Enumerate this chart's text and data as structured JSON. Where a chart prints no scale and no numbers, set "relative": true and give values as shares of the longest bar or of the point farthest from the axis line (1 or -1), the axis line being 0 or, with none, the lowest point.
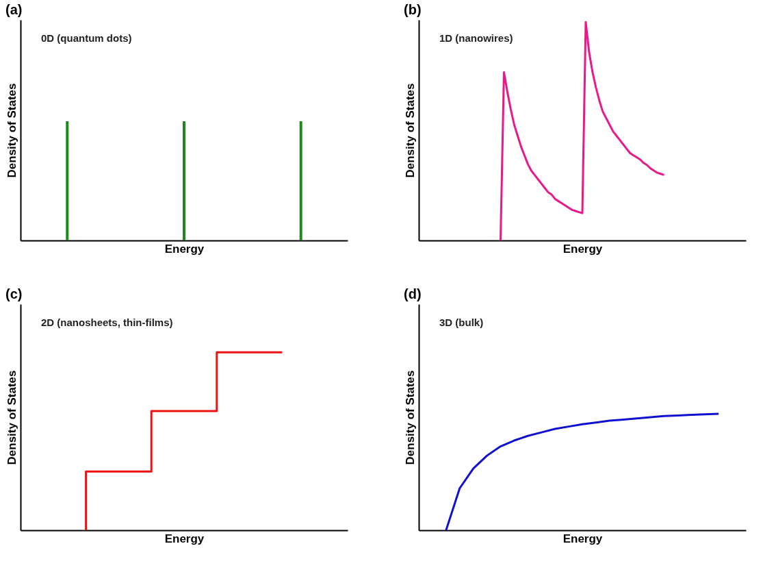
{
  "chart_data": [
    {
      "type": "bar",
      "title": "(a)",
      "annotations": [
        "0D (quantum dots)"
      ],
      "xlabel": "Energy",
      "ylabel": "Density of States",
      "categories": [
        null,
        null,
        null
      ],
      "values": [
        1,
        1,
        1
      ],
      "color": "#1a8a1a",
      "relative": true,
      "tick_labels": false
    },
    {
      "type": "line",
      "title": "(b)",
      "annotations": [
        "1D (nanowires)"
      ],
      "xlabel": "Energy",
      "ylabel": "Density of States",
      "categories": [
        null,
        null,
        null,
        null,
        null,
        null,
        null,
        null,
        null,
        null,
        null,
        null,
        null,
        null,
        null,
        null,
        null,
        null,
        null,
        null,
        null,
        null,
        null,
        null,
        null,
        null,
        null,
        null,
        null,
        null,
        null,
        null,
        null,
        null,
        null,
        null,
        null,
        null,
        null,
        null,
        null,
        null,
        null,
        null,
        null,
        null,
        null,
        null,
        null
      ],
      "values": [
        0,
        0.77,
        0.68,
        0.6,
        0.53,
        0.48,
        0.43,
        0.39,
        0.35,
        0.32,
        0.3,
        0.28,
        0.26,
        0.24,
        0.22,
        0.21,
        0.19,
        0.18,
        0.17,
        0.16,
        0.15,
        0.14,
        0.135,
        0.13,
        0.125,
        1,
        0.86,
        0.77,
        0.7,
        0.64,
        0.59,
        0.56,
        0.53,
        0.5,
        0.48,
        0.46,
        0.44,
        0.42,
        0.4,
        0.39,
        0.38,
        0.37,
        0.355,
        0.345,
        0.33,
        0.32,
        0.31,
        0.305,
        0.3
      ],
      "color": "#e8198b",
      "relative": true,
      "tick_labels": false
    },
    {
      "type": "step",
      "title": "(c)",
      "annotations": [
        "2D (nanosheets, thin-films)"
      ],
      "xlabel": "Energy",
      "ylabel": "Density of States",
      "categories": [
        null,
        null,
        null,
        null
      ],
      "values": [
        0,
        0.33,
        0.67,
        1
      ],
      "color": "#ee1111",
      "relative": true,
      "tick_labels": false
    },
    {
      "type": "line",
      "title": "(d)",
      "annotations": [
        "3D (bulk)"
      ],
      "xlabel": "Energy",
      "ylabel": "Density of States",
      "categories": [
        null,
        null,
        null,
        null,
        null,
        null,
        null,
        null,
        null,
        null,
        null,
        null,
        null,
        null,
        null,
        null,
        null,
        null,
        null,
        null,
        null
      ],
      "values": [
        0,
        0.36,
        0.53,
        0.64,
        0.72,
        0.77,
        0.81,
        0.84,
        0.87,
        0.89,
        0.91,
        0.925,
        0.94,
        0.95,
        0.96,
        0.97,
        0.98,
        0.985,
        0.99,
        0.995,
        1
      ],
      "color": "#1010d0",
      "relative": true,
      "tick_labels": false
    }
  ]
}
